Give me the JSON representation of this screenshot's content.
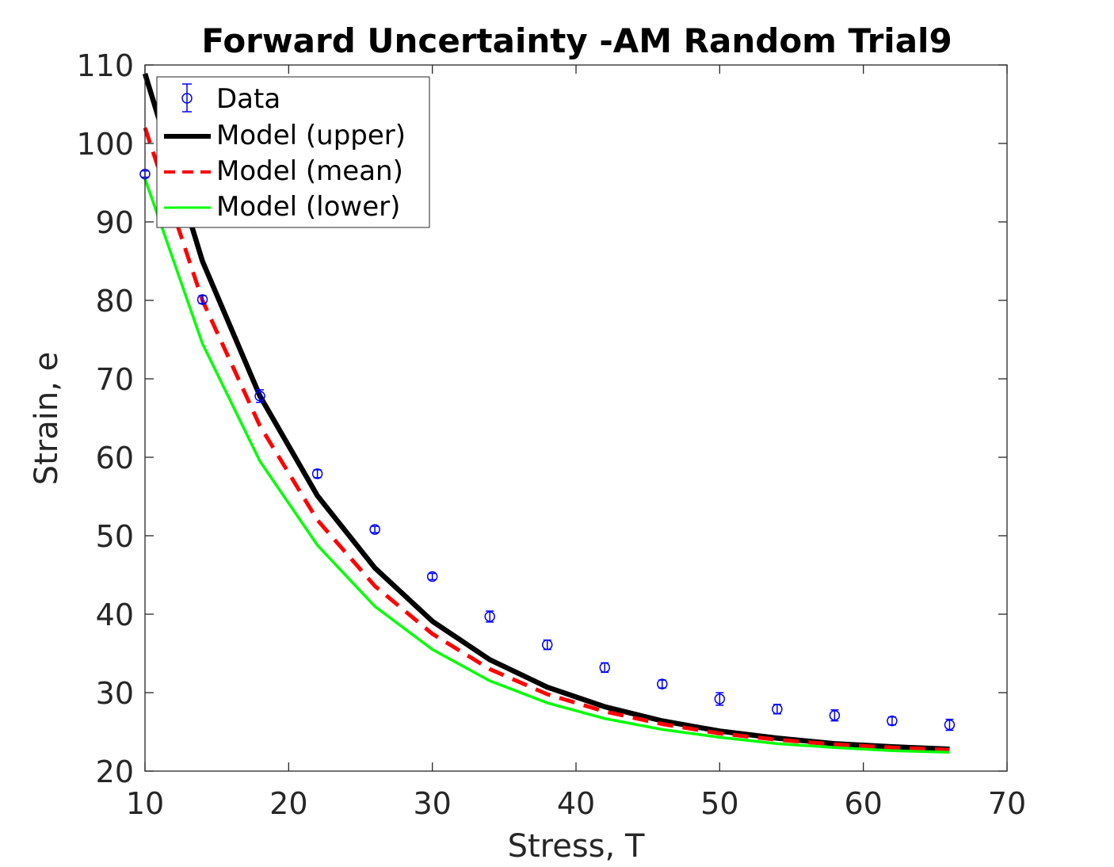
{
  "chart_data": {
    "type": "line",
    "title": "Forward Uncertainty -AM Random Trial9",
    "xlabel": "Stress, T",
    "ylabel": "Strain, e",
    "xlim": [
      10,
      70
    ],
    "ylim": [
      20,
      110
    ],
    "xticks": [
      "10",
      "20",
      "30",
      "40",
      "50",
      "60",
      "70"
    ],
    "yticks": [
      "20",
      "30",
      "40",
      "50",
      "60",
      "70",
      "80",
      "90",
      "100",
      "110"
    ],
    "grid": false,
    "legend_position": "top-left",
    "legend": [
      "Data",
      "Model (upper)",
      "Model (mean)",
      "Model (lower)"
    ],
    "data": {
      "name": "Data",
      "color": "#0000ff",
      "marker": "circle with error bars",
      "x": [
        10,
        14,
        18,
        22,
        26,
        30,
        34,
        38,
        42,
        46,
        50,
        54,
        58,
        62,
        66
      ],
      "y": [
        96.1,
        80.1,
        67.8,
        57.9,
        50.8,
        44.8,
        39.7,
        36.1,
        33.2,
        31.1,
        29.2,
        27.9,
        27.1,
        26.4,
        25.9
      ],
      "err": [
        0.4,
        0.5,
        0.8,
        0.5,
        0.4,
        0.4,
        0.7,
        0.6,
        0.6,
        0.5,
        0.8,
        0.6,
        0.7,
        0.5,
        0.7
      ]
    },
    "series": [
      {
        "name": "Model (upper)",
        "color": "#000000",
        "style": "solid-thick",
        "x": [
          10,
          14,
          18,
          22,
          26,
          30,
          34,
          38,
          42,
          46,
          50,
          54,
          58,
          62,
          66
        ],
        "y": [
          108.9,
          85.0,
          67.8,
          55.1,
          45.9,
          39.1,
          34.2,
          30.7,
          28.2,
          26.4,
          25.1,
          24.2,
          23.5,
          23.1,
          22.8
        ]
      },
      {
        "name": "Model (mean)",
        "color": "#ff0000",
        "style": "dashed",
        "x": [
          10,
          14,
          18,
          22,
          26,
          30,
          34,
          38,
          42,
          46,
          50,
          54,
          58,
          62,
          66
        ],
        "y": [
          102.0,
          80.0,
          64.0,
          52.0,
          43.6,
          37.5,
          33.0,
          29.8,
          27.6,
          26.0,
          24.8,
          24.0,
          23.4,
          23.0,
          22.7
        ]
      },
      {
        "name": "Model (lower)",
        "color": "#00ff00",
        "style": "solid-thin",
        "x": [
          10,
          14,
          18,
          22,
          26,
          30,
          34,
          38,
          42,
          46,
          50,
          54,
          58,
          62,
          66
        ],
        "y": [
          95.5,
          74.5,
          59.5,
          48.8,
          41.0,
          35.5,
          31.5,
          28.7,
          26.7,
          25.3,
          24.3,
          23.5,
          23.0,
          22.6,
          22.4
        ]
      }
    ]
  }
}
